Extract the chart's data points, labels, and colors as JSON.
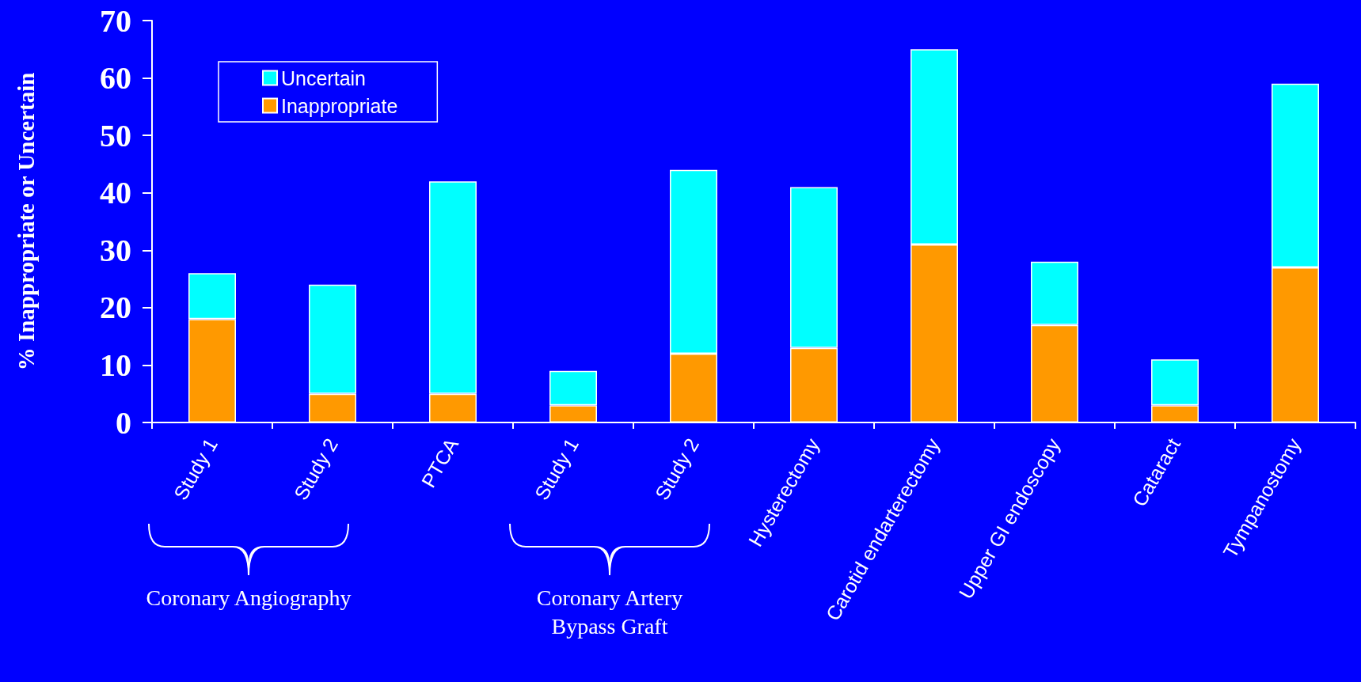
{
  "chart_data": {
    "type": "bar",
    "stacked": true,
    "ylabel": "% Inappropriate or Uncertain",
    "categories": [
      "Study 1",
      "Study 2",
      "PTCA",
      "Study 1",
      "Study 2",
      "Hysterectomy",
      "Carotid endarterectomy",
      "Upper GI endoscopy",
      "Cataract",
      "Tympanostomy"
    ],
    "series": [
      {
        "name": "Inappropriate",
        "color": "#ff9900",
        "values": [
          18,
          5,
          5,
          3,
          12,
          13,
          31,
          17,
          3,
          27
        ]
      },
      {
        "name": "Uncertain",
        "color": "#00ffff",
        "values": [
          8,
          19,
          37,
          6,
          32,
          28,
          34,
          11,
          8,
          32
        ]
      }
    ],
    "ylim": [
      0,
      70
    ],
    "yticks": [
      0,
      10,
      20,
      30,
      40,
      50,
      60,
      70
    ],
    "grid": false,
    "legend": "top left",
    "annotations": [
      "Coronary Angiography",
      "Coronary Artery Bypass Graft"
    ]
  }
}
